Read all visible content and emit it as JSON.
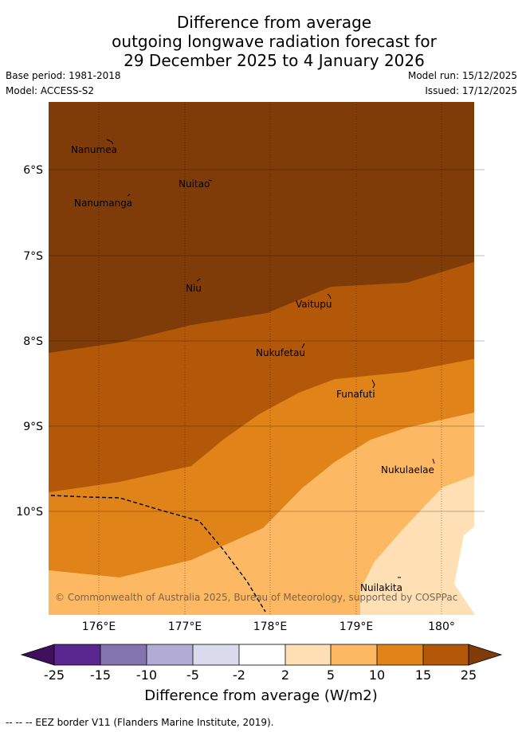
{
  "title": {
    "line1": "Difference from average",
    "line2": "outgoing longwave radiation forecast for",
    "line3": "29 December 2025 to 4 January 2026"
  },
  "meta": {
    "base_period": "Base period: 1981-2018",
    "model": "Model: ACCESS-S2",
    "model_run": "Model run: 15/12/2025",
    "issued": "Issued: 17/12/2025"
  },
  "axes": {
    "lat_labels": [
      "6°S",
      "7°S",
      "8°S",
      "9°S",
      "10°S"
    ],
    "lon_labels": [
      "176°E",
      "177°E",
      "178°E",
      "179°E",
      "180°"
    ]
  },
  "places": [
    {
      "name": "Nanumea"
    },
    {
      "name": "Nuitao"
    },
    {
      "name": "Nanumanga"
    },
    {
      "name": "Niu"
    },
    {
      "name": "Vaitupu"
    },
    {
      "name": "Nukufetau"
    },
    {
      "name": "Funafuti"
    },
    {
      "name": "Nukulaelae"
    },
    {
      "name": "Nuilakita"
    }
  ],
  "copyright": "© Commonwealth of Australia 2025, Bureau of Meteorology, supported by COSPPac",
  "colorbar": {
    "label": "Difference from average (W/m2)",
    "ticks": [
      "-25",
      "-15",
      "-10",
      "-5",
      "-2",
      "2",
      "5",
      "10",
      "15",
      "25"
    ],
    "colors": {
      "under": "#3f0f5e",
      "b1": "#5a2690",
      "b2": "#8475b0",
      "b3": "#b2acd4",
      "b4": "#d9daec",
      "b5": "#ffffff",
      "b6": "#fee0b4",
      "b7": "#fdb863",
      "b8": "#e08319",
      "b9": "#b35808",
      "over": "#7f3b08"
    }
  },
  "footer": "--  --  -- EEZ border V11 (Flanders Marine Institute, 2019)."
}
